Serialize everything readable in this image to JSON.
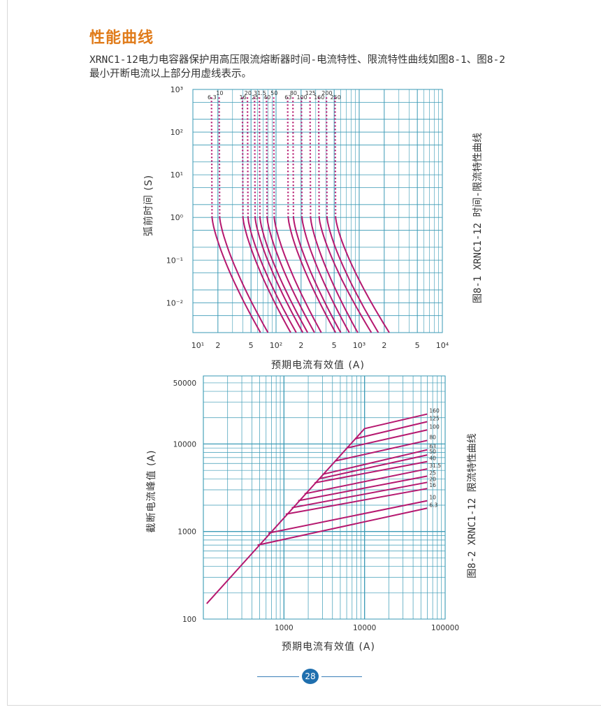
{
  "page": {
    "section_title": "性能曲线",
    "intro_line1": "XRNC1-12电力电容器保护用高压限流熔断器时间-电流特性、限流特性曲线如图8-1、图8-2",
    "intro_line2": "最小开断电流以上部分用虚线表示。",
    "page_number": "28"
  },
  "colors": {
    "curve": "#b5186f",
    "grid": "#3a9ab5",
    "title": "#e07b1a",
    "page_badge": "#1f6fae"
  },
  "chart_data": [
    {
      "type": "line",
      "caption": "图8-1 XRNC1-12 时间-限流特性曲线",
      "xlabel": "预期电流有效值 (A)",
      "ylabel": "弧前时间 (S)",
      "x_scale": "log",
      "y_scale": "log",
      "xlim": [
        10,
        10000
      ],
      "ylim": [
        0.002,
        1000
      ],
      "x_tick_labels": [
        "10¹",
        "2",
        "5",
        "10²",
        "2",
        "5",
        "10³",
        "2",
        "5",
        "10⁴"
      ],
      "x_tick_values": [
        10,
        20,
        50,
        100,
        200,
        500,
        1000,
        2000,
        5000,
        10000
      ],
      "y_tick_labels": [
        "10³",
        "10²",
        "10¹",
        "10⁰",
        "10⁻¹",
        "10⁻²"
      ],
      "y_tick_values": [
        1000,
        100,
        10,
        1,
        0.1,
        0.01
      ],
      "grid": true,
      "note": "最小开断电流以上部分用虚线表示",
      "series": [
        {
          "name": "6.3",
          "min_break_current": 17,
          "current_at_0_002s": 65
        },
        {
          "name": "10",
          "min_break_current": 21,
          "current_at_0_002s": 80
        },
        {
          "name": "16",
          "min_break_current": 40,
          "current_at_0_002s": 150
        },
        {
          "name": "20",
          "min_break_current": 46,
          "current_at_0_002s": 175
        },
        {
          "name": "25",
          "min_break_current": 56,
          "current_at_0_002s": 210
        },
        {
          "name": "31.5",
          "min_break_current": 64,
          "current_at_0_002s": 240
        },
        {
          "name": "40",
          "min_break_current": 78,
          "current_at_0_002s": 290
        },
        {
          "name": "50",
          "min_break_current": 95,
          "current_at_0_002s": 350
        },
        {
          "name": "63",
          "min_break_current": 140,
          "current_at_0_002s": 520
        },
        {
          "name": "80",
          "min_break_current": 162,
          "current_at_0_002s": 600
        },
        {
          "name": "100",
          "min_break_current": 205,
          "current_at_0_002s": 760
        },
        {
          "name": "125",
          "min_break_current": 260,
          "current_at_0_002s": 960
        },
        {
          "name": "160",
          "min_break_current": 330,
          "current_at_0_002s": 1400
        },
        {
          "name": "200",
          "min_break_current": 410,
          "current_at_0_002s": 1700
        },
        {
          "name": "250",
          "min_break_current": 520,
          "current_at_0_002s": 2300
        }
      ]
    },
    {
      "type": "line",
      "caption": "图8-2 XRNC1-12 限流特性曲线",
      "xlabel": "预期电流有效值 (A)",
      "ylabel": "截断电流峰值 (A)",
      "x_scale": "log",
      "y_scale": "log",
      "xlim": [
        100,
        100000
      ],
      "ylim": [
        100,
        60000
      ],
      "x_tick_labels": [
        "1000",
        "10000",
        "100000"
      ],
      "x_tick_values": [
        1000,
        10000,
        100000
      ],
      "y_tick_labels": [
        "50000",
        "10000",
        "1000",
        "100"
      ],
      "y_tick_values": [
        50000,
        10000,
        1000,
        100
      ],
      "grid": true,
      "diagonal": {
        "x": [
          110,
          10000
        ],
        "y": [
          150,
          15000
        ]
      },
      "series": [
        {
          "name": "160",
          "x": [
            10000,
            60000
          ],
          "y": [
            15000,
            22000
          ]
        },
        {
          "name": "125",
          "x": [
            7700,
            60000
          ],
          "y": [
            11500,
            18000
          ]
        },
        {
          "name": "100",
          "x": [
            6000,
            60000
          ],
          "y": [
            9000,
            14500
          ]
        },
        {
          "name": "80",
          "x": [
            4300,
            60000
          ],
          "y": [
            6400,
            11000
          ]
        },
        {
          "name": "63",
          "x": [
            3000,
            60000
          ],
          "y": [
            4500,
            8600
          ]
        },
        {
          "name": "50",
          "x": [
            2700,
            60000
          ],
          "y": [
            4000,
            7500
          ]
        },
        {
          "name": "40",
          "x": [
            2400,
            60000
          ],
          "y": [
            3600,
            6300
          ]
        },
        {
          "name": "31.5",
          "x": [
            1800,
            60000
          ],
          "y": [
            2700,
            5200
          ]
        },
        {
          "name": "25",
          "x": [
            1500,
            60000
          ],
          "y": [
            2250,
            4300
          ]
        },
        {
          "name": "20",
          "x": [
            1250,
            60000
          ],
          "y": [
            1870,
            3650
          ]
        },
        {
          "name": "16",
          "x": [
            1050,
            60000
          ],
          "y": [
            1580,
            3100
          ]
        },
        {
          "name": "10",
          "x": [
            640,
            60000
          ],
          "y": [
            960,
            2250
          ]
        },
        {
          "name": "6.3",
          "x": [
            470,
            60000
          ],
          "y": [
            700,
            1850
          ]
        }
      ]
    }
  ]
}
